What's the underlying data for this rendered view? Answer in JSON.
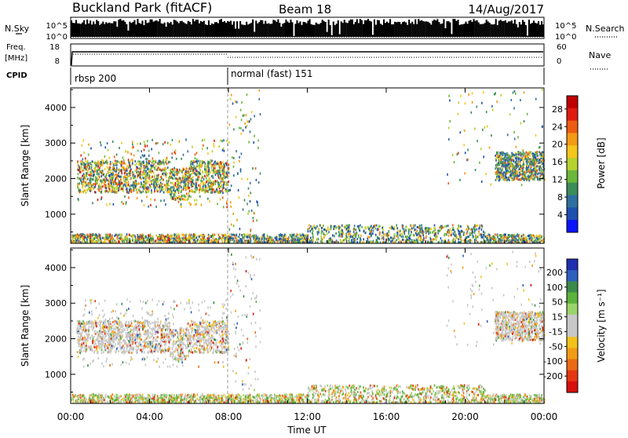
{
  "header": {
    "title": "Buckland Park (fitACF)",
    "beam": "Beam 18",
    "date": "14/Aug/2017"
  },
  "strips": {
    "nsky_label": "N.Sky",
    "nsky_ticks": [
      "10^5",
      "10^0"
    ],
    "nsearch_label": "N.Search",
    "nsearch_ticks": [
      "10^5",
      "10^0"
    ],
    "freq_label_1": "Freq.",
    "freq_label_2": "[MHz]",
    "freq_ticks": [
      "18",
      "8"
    ],
    "nave_label": "Nave",
    "nave_ticks": [
      "60",
      "0"
    ],
    "cpid_label": "CPID",
    "cpid_modes": [
      {
        "name": "rbsp 200",
        "start_hour": 0
      },
      {
        "name": "normal (fast) 151",
        "start_hour": 8
      }
    ]
  },
  "chart_data": [
    {
      "type": "heatmap",
      "name": "power",
      "ylabel": "Slant Range [km]",
      "ylim": [
        180,
        4550
      ],
      "yticks": [
        1000,
        2000,
        3000,
        4000
      ],
      "xlim": [
        0,
        24
      ],
      "colorbar": {
        "label": "Power [dB]",
        "ticks": [
          "4",
          "8",
          "12",
          "16",
          "20",
          "24",
          "28"
        ],
        "colors": [
          "#0a14ff",
          "#1e4fb0",
          "#2f6fa0",
          "#3c8c5a",
          "#6ab73c",
          "#b6d22e",
          "#f5c61b",
          "#f59a16",
          "#ee5c12",
          "#e01c10",
          "#c00000"
        ]
      }
    },
    {
      "type": "heatmap",
      "name": "velocity",
      "ylabel": "Slant Range [km]",
      "ylim": [
        180,
        4550
      ],
      "yticks": [
        1000,
        2000,
        3000,
        4000
      ],
      "xlim": [
        0,
        24
      ],
      "colorbar": {
        "label": "Velocity [m s⁻¹]",
        "ticks": [
          "200",
          "100",
          "50",
          "15",
          "-15",
          "-50",
          "-100",
          "-200"
        ],
        "colors": [
          "#1f2fb0",
          "#2d5fc0",
          "#3c8a4a",
          "#5cb23a",
          "#9ad36a",
          "#c8c8c8",
          "#c8c8c8",
          "#f2c21a",
          "#f29c16",
          "#ec6a14",
          "#e63612",
          "#d80f0f"
        ]
      }
    }
  ],
  "xaxis": {
    "label": "Time UT",
    "ticks": [
      "00:00",
      "04:00",
      "08:00",
      "12:00",
      "16:00",
      "20:00",
      "00:00"
    ],
    "tick_hours": [
      0,
      4,
      8,
      12,
      16,
      20,
      24
    ]
  }
}
